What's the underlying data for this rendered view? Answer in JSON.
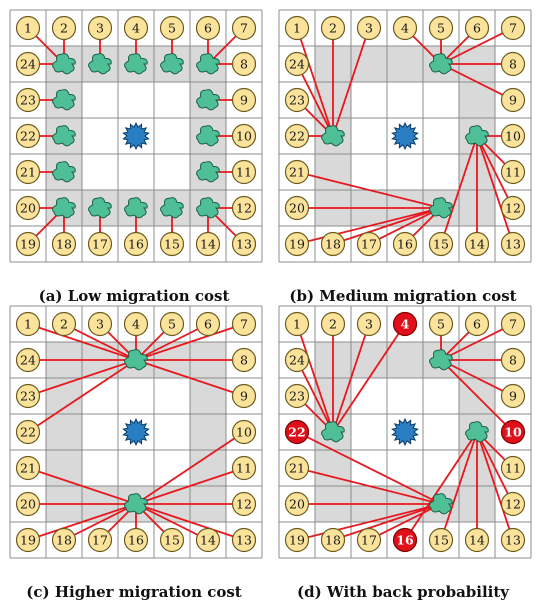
{
  "panels": [
    {
      "caption": "(a) Low migration cost",
      "clouds": [
        {
          "row": 1,
          "col": 1
        },
        {
          "row": 1,
          "col": 2
        },
        {
          "row": 1,
          "col": 3
        },
        {
          "row": 1,
          "col": 4
        },
        {
          "row": 1,
          "col": 5
        },
        {
          "row": 2,
          "col": 1
        },
        {
          "row": 2,
          "col": 5
        },
        {
          "row": 3,
          "col": 1
        },
        {
          "row": 3,
          "col": 5
        },
        {
          "row": 4,
          "col": 1
        },
        {
          "row": 4,
          "col": 5
        },
        {
          "row": 5,
          "col": 1
        },
        {
          "row": 5,
          "col": 2
        },
        {
          "row": 5,
          "col": 3
        },
        {
          "row": 5,
          "col": 4
        },
        {
          "row": 5,
          "col": 5
        }
      ],
      "shaded": [
        [
          1,
          1
        ],
        [
          1,
          2
        ],
        [
          1,
          3
        ],
        [
          1,
          4
        ],
        [
          1,
          5
        ],
        [
          2,
          1
        ],
        [
          2,
          5
        ],
        [
          3,
          1
        ],
        [
          3,
          5
        ],
        [
          4,
          1
        ],
        [
          4,
          5
        ],
        [
          5,
          1
        ],
        [
          5,
          2
        ],
        [
          5,
          3
        ],
        [
          5,
          4
        ],
        [
          5,
          5
        ]
      ],
      "edges": [
        [
          1,
          1,
          2
        ],
        [
          1,
          1,
          1
        ],
        [
          1,
          2,
          3
        ],
        [
          1,
          3,
          4
        ],
        [
          1,
          4,
          5
        ],
        [
          1,
          5,
          6
        ],
        [
          1,
          5,
          7
        ],
        [
          1,
          5,
          8
        ],
        [
          2,
          5,
          9
        ],
        [
          3,
          5,
          10
        ],
        [
          4,
          5,
          11
        ],
        [
          5,
          5,
          12
        ],
        [
          5,
          5,
          13
        ],
        [
          5,
          5,
          14
        ],
        [
          5,
          4,
          15
        ],
        [
          5,
          3,
          16
        ],
        [
          5,
          2,
          17
        ],
        [
          5,
          1,
          18
        ],
        [
          5,
          1,
          19
        ],
        [
          5,
          1,
          20
        ],
        [
          4,
          1,
          21
        ],
        [
          3,
          1,
          22
        ],
        [
          2,
          1,
          23
        ],
        [
          1,
          1,
          24
        ]
      ],
      "red_nodes": []
    },
    {
      "caption": "(b) Medium migration cost",
      "clouds": [
        {
          "row": 1,
          "col": 4
        },
        {
          "row": 3,
          "col": 5
        },
        {
          "row": 5,
          "col": 4
        },
        {
          "row": 3,
          "col": 1
        }
      ],
      "shaded": [
        [
          1,
          1
        ],
        [
          1,
          2
        ],
        [
          1,
          3
        ],
        [
          1,
          4
        ],
        [
          1,
          5
        ],
        [
          2,
          1
        ],
        [
          2,
          5
        ],
        [
          3,
          1
        ],
        [
          3,
          5
        ],
        [
          4,
          1
        ],
        [
          4,
          5
        ],
        [
          5,
          1
        ],
        [
          5,
          2
        ],
        [
          5,
          3
        ],
        [
          5,
          4
        ],
        [
          5,
          5
        ]
      ],
      "edges": [
        [
          3,
          1,
          1
        ],
        [
          3,
          1,
          2
        ],
        [
          3,
          1,
          3
        ],
        [
          3,
          1,
          24
        ],
        [
          3,
          1,
          23
        ],
        [
          3,
          1,
          22
        ],
        [
          1,
          4,
          4
        ],
        [
          1,
          4,
          5
        ],
        [
          1,
          4,
          6
        ],
        [
          1,
          4,
          7
        ],
        [
          1,
          4,
          8
        ],
        [
          1,
          4,
          9
        ],
        [
          3,
          5,
          10
        ],
        [
          3,
          5,
          11
        ],
        [
          3,
          5,
          12
        ],
        [
          3,
          5,
          13
        ],
        [
          3,
          5,
          14
        ],
        [
          3,
          5,
          15
        ],
        [
          5,
          4,
          16
        ],
        [
          5,
          4,
          17
        ],
        [
          5,
          4,
          18
        ],
        [
          5,
          4,
          19
        ],
        [
          5,
          4,
          20
        ],
        [
          5,
          4,
          21
        ]
      ],
      "red_nodes": []
    },
    {
      "caption": "(c) Higher migration cost",
      "clouds": [
        {
          "row": 1,
          "col": 3
        },
        {
          "row": 5,
          "col": 3
        }
      ],
      "shaded": [
        [
          1,
          1
        ],
        [
          1,
          2
        ],
        [
          1,
          3
        ],
        [
          1,
          4
        ],
        [
          1,
          5
        ],
        [
          2,
          1
        ],
        [
          2,
          5
        ],
        [
          3,
          1
        ],
        [
          3,
          5
        ],
        [
          4,
          1
        ],
        [
          4,
          5
        ],
        [
          5,
          1
        ],
        [
          5,
          2
        ],
        [
          5,
          3
        ],
        [
          5,
          4
        ],
        [
          5,
          5
        ]
      ],
      "edges": [
        [
          1,
          3,
          1
        ],
        [
          1,
          3,
          2
        ],
        [
          1,
          3,
          3
        ],
        [
          1,
          3,
          4
        ],
        [
          1,
          3,
          5
        ],
        [
          1,
          3,
          6
        ],
        [
          1,
          3,
          7
        ],
        [
          1,
          3,
          8
        ],
        [
          1,
          3,
          9
        ],
        [
          1,
          3,
          24
        ],
        [
          1,
          3,
          23
        ],
        [
          1,
          3,
          22
        ],
        [
          5,
          3,
          10
        ],
        [
          5,
          3,
          11
        ],
        [
          5,
          3,
          12
        ],
        [
          5,
          3,
          13
        ],
        [
          5,
          3,
          14
        ],
        [
          5,
          3,
          15
        ],
        [
          5,
          3,
          16
        ],
        [
          5,
          3,
          17
        ],
        [
          5,
          3,
          18
        ],
        [
          5,
          3,
          19
        ],
        [
          5,
          3,
          20
        ],
        [
          5,
          3,
          21
        ]
      ],
      "red_nodes": []
    },
    {
      "caption": "(d) With back probability",
      "clouds": [
        {
          "row": 1,
          "col": 4
        },
        {
          "row": 3,
          "col": 5
        },
        {
          "row": 5,
          "col": 4
        },
        {
          "row": 3,
          "col": 1
        }
      ],
      "shaded": [
        [
          1,
          1
        ],
        [
          1,
          2
        ],
        [
          1,
          3
        ],
        [
          1,
          4
        ],
        [
          1,
          5
        ],
        [
          2,
          1
        ],
        [
          2,
          5
        ],
        [
          3,
          1
        ],
        [
          3,
          5
        ],
        [
          4,
          1
        ],
        [
          4,
          5
        ],
        [
          5,
          1
        ],
        [
          5,
          2
        ],
        [
          5,
          3
        ],
        [
          5,
          4
        ],
        [
          5,
          5
        ]
      ],
      "edges": [
        [
          3,
          1,
          1
        ],
        [
          3,
          1,
          2
        ],
        [
          3,
          1,
          3
        ],
        [
          3,
          1,
          4
        ],
        [
          3,
          1,
          24
        ],
        [
          3,
          1,
          23
        ],
        [
          1,
          4,
          5
        ],
        [
          1,
          4,
          6
        ],
        [
          1,
          4,
          7
        ],
        [
          1,
          4,
          8
        ],
        [
          1,
          4,
          9
        ],
        [
          1,
          4,
          10
        ],
        [
          3,
          5,
          11
        ],
        [
          3,
          5,
          12
        ],
        [
          3,
          5,
          13
        ],
        [
          3,
          5,
          14
        ],
        [
          3,
          5,
          15
        ],
        [
          3,
          5,
          16
        ],
        [
          5,
          4,
          17
        ],
        [
          5,
          4,
          18
        ],
        [
          5,
          4,
          19
        ],
        [
          5,
          4,
          20
        ],
        [
          5,
          4,
          21
        ],
        [
          5,
          4,
          22
        ]
      ],
      "red_nodes": [
        4,
        10,
        16,
        22
      ]
    }
  ],
  "border_nodes": [
    {
      "id": 1,
      "row": 0,
      "col": 0
    },
    {
      "id": 2,
      "row": 0,
      "col": 1
    },
    {
      "id": 3,
      "row": 0,
      "col": 2
    },
    {
      "id": 4,
      "row": 0,
      "col": 3
    },
    {
      "id": 5,
      "row": 0,
      "col": 4
    },
    {
      "id": 6,
      "row": 0,
      "col": 5
    },
    {
      "id": 7,
      "row": 0,
      "col": 6
    },
    {
      "id": 8,
      "row": 1,
      "col": 6
    },
    {
      "id": 9,
      "row": 2,
      "col": 6
    },
    {
      "id": 10,
      "row": 3,
      "col": 6
    },
    {
      "id": 11,
      "row": 4,
      "col": 6
    },
    {
      "id": 12,
      "row": 5,
      "col": 6
    },
    {
      "id": 13,
      "row": 6,
      "col": 6
    },
    {
      "id": 14,
      "row": 6,
      "col": 5
    },
    {
      "id": 15,
      "row": 6,
      "col": 4
    },
    {
      "id": 16,
      "row": 6,
      "col": 3
    },
    {
      "id": 17,
      "row": 6,
      "col": 2
    },
    {
      "id": 18,
      "row": 6,
      "col": 1
    },
    {
      "id": 19,
      "row": 6,
      "col": 0
    },
    {
      "id": 20,
      "row": 5,
      "col": 0
    },
    {
      "id": 21,
      "row": 4,
      "col": 0
    },
    {
      "id": 22,
      "row": 3,
      "col": 0
    },
    {
      "id": 23,
      "row": 2,
      "col": 0
    },
    {
      "id": 24,
      "row": 1,
      "col": 0
    }
  ],
  "center": {
    "row": 3,
    "col": 3
  },
  "colors": {
    "node_fill": "#fbe39b",
    "node_stroke": "#6b5a1e",
    "red_node": "#e0101a",
    "edge": "#e8171d",
    "cloud_fill": "#4fbf98",
    "cloud_stroke": "#1e5f48",
    "star_fill": "#2a7fc4",
    "star_stroke": "#0d3f6b",
    "shade": "#d9d9d9",
    "grid": "#8c8c8c"
  },
  "icons": {
    "cloud": "cloud-icon",
    "star": "star-icon"
  }
}
